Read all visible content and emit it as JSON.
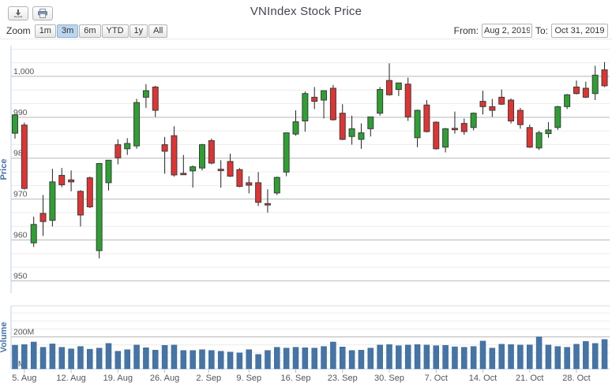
{
  "header": {
    "title": "VNIndex Stock Price"
  },
  "toolbar": {
    "export_icons": [
      "download-icon",
      "print-icon"
    ],
    "zoom_label": "Zoom",
    "zoom_buttons": [
      "1m",
      "3m",
      "6m",
      "YTD",
      "1y",
      "All"
    ],
    "zoom_active": "3m",
    "from_label": "From:",
    "from_value": "Aug 2, 2019",
    "to_label": "To:",
    "to_value": "Oct 31, 2019"
  },
  "colors": {
    "up": "#2da032",
    "down": "#e23232",
    "candle_outline": "#3c3c3c",
    "volume_bar": "#4574a7",
    "axis_title": "#4572a7",
    "grid_major": "#b8b8b8",
    "grid_minor": "#ececec",
    "axis_line": "#c0d0e0",
    "tick_label": "#555555"
  },
  "chart_data": {
    "type": "candlestick",
    "title": "VNIndex Stock Price",
    "price_axis": {
      "title": "Price",
      "ticks": [
        950,
        960,
        970,
        980,
        990,
        1000
      ],
      "tick_labels": [
        "950",
        "960",
        "970",
        "980",
        "990",
        "1,000"
      ],
      "range": [
        947,
        1007.5
      ],
      "minor_per_major": 3,
      "grid": true
    },
    "volume_axis": {
      "title": "Volume",
      "tick_labels": [
        "0M",
        "200M"
      ],
      "range_millions": [
        0,
        395
      ],
      "minor_step_millions": 50
    },
    "x_labels": [
      {
        "text": "5. Aug",
        "i": 1
      },
      {
        "text": "12. Aug",
        "i": 6
      },
      {
        "text": "19. Aug",
        "i": 11
      },
      {
        "text": "26. Aug",
        "i": 16
      },
      {
        "text": "2. Sep",
        "i": 20.7
      },
      {
        "text": "9. Sep",
        "i": 25
      },
      {
        "text": "16. Sep",
        "i": 30
      },
      {
        "text": "23. Sep",
        "i": 35
      },
      {
        "text": "30. Sep",
        "i": 40
      },
      {
        "text": "7. Oct",
        "i": 45
      },
      {
        "text": "14. Oct",
        "i": 50
      },
      {
        "text": "21. Oct",
        "i": 55
      },
      {
        "text": "28. Oct",
        "i": 60
      }
    ],
    "candles": [
      {
        "d": "Aug 2",
        "o": 986.1,
        "h": 990.8,
        "l": 984.8,
        "c": 990.6,
        "v": 148
      },
      {
        "d": "Aug 5",
        "o": 988.1,
        "h": 988.7,
        "l": 972.3,
        "c": 972.6,
        "v": 152
      },
      {
        "d": "Aug 6",
        "o": 959.3,
        "h": 965.7,
        "l": 958.3,
        "c": 963.8,
        "v": 168
      },
      {
        "d": "Aug 7",
        "o": 966.5,
        "h": 971.0,
        "l": 961.0,
        "c": 964.5,
        "v": 135
      },
      {
        "d": "Aug 8",
        "o": 964.8,
        "h": 977.4,
        "l": 963.3,
        "c": 974.2,
        "v": 156
      },
      {
        "d": "Aug 9",
        "o": 975.8,
        "h": 977.6,
        "l": 972.9,
        "c": 973.5,
        "v": 135
      },
      {
        "d": "Aug 12",
        "o": 974.7,
        "h": 977.0,
        "l": 971.9,
        "c": 974.2,
        "v": 125
      },
      {
        "d": "Aug 13",
        "o": 971.9,
        "h": 972.2,
        "l": 963.3,
        "c": 966.1,
        "v": 140
      },
      {
        "d": "Aug 14",
        "o": 975.2,
        "h": 975.5,
        "l": 967.8,
        "c": 968.1,
        "v": 123
      },
      {
        "d": "Aug 15",
        "o": 957.4,
        "h": 978.7,
        "l": 955.5,
        "c": 978.7,
        "v": 130
      },
      {
        "d": "Aug 16",
        "o": 974.0,
        "h": 979.5,
        "l": 972.1,
        "c": 979.5,
        "v": 159
      },
      {
        "d": "Aug 19",
        "o": 983.3,
        "h": 984.6,
        "l": 978.5,
        "c": 980.1,
        "v": 110
      },
      {
        "d": "Aug 20",
        "o": 982.3,
        "h": 984.9,
        "l": 980.8,
        "c": 983.6,
        "v": 120
      },
      {
        "d": "Aug 21",
        "o": 983.0,
        "h": 994.5,
        "l": 982.3,
        "c": 993.6,
        "v": 149
      },
      {
        "d": "Aug 22",
        "o": 994.9,
        "h": 998.1,
        "l": 992.3,
        "c": 996.5,
        "v": 132
      },
      {
        "d": "Aug 23",
        "o": 997.4,
        "h": 997.7,
        "l": 990.1,
        "c": 991.7,
        "v": 117
      },
      {
        "d": "Aug 26",
        "o": 983.3,
        "h": 985.2,
        "l": 976.2,
        "c": 981.7,
        "v": 147
      },
      {
        "d": "Aug 27",
        "o": 985.5,
        "h": 987.8,
        "l": 975.5,
        "c": 975.9,
        "v": 149
      },
      {
        "d": "Aug 28",
        "o": 976.3,
        "h": 980.8,
        "l": 975.9,
        "c": 976.1,
        "v": 115
      },
      {
        "d": "Aug 29",
        "o": 976.9,
        "h": 978.2,
        "l": 972.8,
        "c": 977.9,
        "v": 115
      },
      {
        "d": "Aug 30",
        "o": 977.6,
        "h": 983.5,
        "l": 977.0,
        "c": 983.3,
        "v": 120
      },
      {
        "d": "Sep 3",
        "o": 984.3,
        "h": 984.8,
        "l": 978.5,
        "c": 978.8,
        "v": 115
      },
      {
        "d": "Sep 4",
        "o": 977.3,
        "h": 979.5,
        "l": 972.8,
        "c": 977.0,
        "v": 110
      },
      {
        "d": "Sep 5",
        "o": 979.2,
        "h": 981.1,
        "l": 975.4,
        "c": 975.6,
        "v": 105
      },
      {
        "d": "Sep 6",
        "o": 977.2,
        "h": 977.6,
        "l": 972.9,
        "c": 973.1,
        "v": 100
      },
      {
        "d": "Sep 9",
        "o": 974.0,
        "h": 975.6,
        "l": 971.4,
        "c": 973.4,
        "v": 120
      },
      {
        "d": "Sep 10",
        "o": 974.0,
        "h": 976.6,
        "l": 968.3,
        "c": 969.2,
        "v": 90
      },
      {
        "d": "Sep 11",
        "o": 968.9,
        "h": 972.4,
        "l": 966.7,
        "c": 968.7,
        "v": 115
      },
      {
        "d": "Sep 12",
        "o": 971.5,
        "h": 975.5,
        "l": 971.0,
        "c": 975.3,
        "v": 135
      },
      {
        "d": "Sep 13",
        "o": 976.6,
        "h": 986.2,
        "l": 975.6,
        "c": 986.2,
        "v": 130
      },
      {
        "d": "Sep 16",
        "o": 985.9,
        "h": 991.7,
        "l": 985.5,
        "c": 988.9,
        "v": 135
      },
      {
        "d": "Sep 17",
        "o": 989.1,
        "h": 996.3,
        "l": 986.5,
        "c": 995.8,
        "v": 132
      },
      {
        "d": "Sep 18",
        "o": 994.9,
        "h": 997.4,
        "l": 992.0,
        "c": 993.9,
        "v": 130
      },
      {
        "d": "Sep 19",
        "o": 994.2,
        "h": 996.6,
        "l": 989.7,
        "c": 996.5,
        "v": 140
      },
      {
        "d": "Sep 20",
        "o": 997.1,
        "h": 997.9,
        "l": 989.2,
        "c": 989.4,
        "v": 168
      },
      {
        "d": "Sep 23",
        "o": 991.0,
        "h": 993.2,
        "l": 984.4,
        "c": 984.6,
        "v": 137
      },
      {
        "d": "Sep 24",
        "o": 985.3,
        "h": 990.4,
        "l": 983.3,
        "c": 987.2,
        "v": 115
      },
      {
        "d": "Sep 25",
        "o": 984.6,
        "h": 988.5,
        "l": 982.3,
        "c": 986.2,
        "v": 117
      },
      {
        "d": "Sep 26",
        "o": 987.2,
        "h": 990.1,
        "l": 985.3,
        "c": 990.1,
        "v": 130
      },
      {
        "d": "Sep 27",
        "o": 991.0,
        "h": 997.4,
        "l": 990.4,
        "c": 996.8,
        "v": 149
      },
      {
        "d": "Sep 30",
        "o": 999.0,
        "h": 1003.2,
        "l": 995.3,
        "c": 995.5,
        "v": 152
      },
      {
        "d": "Oct 1",
        "o": 996.8,
        "h": 998.4,
        "l": 995.2,
        "c": 998.4,
        "v": 145
      },
      {
        "d": "Oct 2",
        "o": 998.1,
        "h": 999.7,
        "l": 989.1,
        "c": 990.1,
        "v": 149
      },
      {
        "d": "Oct 3",
        "o": 985.0,
        "h": 991.9,
        "l": 982.7,
        "c": 991.7,
        "v": 152
      },
      {
        "d": "Oct 4",
        "o": 993.0,
        "h": 994.2,
        "l": 986.3,
        "c": 986.5,
        "v": 149
      },
      {
        "d": "Oct 7",
        "o": 988.8,
        "h": 989.0,
        "l": 982.1,
        "c": 982.3,
        "v": 145
      },
      {
        "d": "Oct 8",
        "o": 982.7,
        "h": 987.4,
        "l": 981.4,
        "c": 987.2,
        "v": 147
      },
      {
        "d": "Oct 9",
        "o": 987.3,
        "h": 991.4,
        "l": 986.0,
        "c": 987.1,
        "v": 138
      },
      {
        "d": "Oct 10",
        "o": 988.5,
        "h": 989.7,
        "l": 985.7,
        "c": 986.5,
        "v": 135
      },
      {
        "d": "Oct 11",
        "o": 987.5,
        "h": 991.2,
        "l": 986.8,
        "c": 991.0,
        "v": 140
      },
      {
        "d": "Oct 14",
        "o": 993.9,
        "h": 996.5,
        "l": 990.7,
        "c": 992.6,
        "v": 174
      },
      {
        "d": "Oct 15",
        "o": 992.6,
        "h": 994.5,
        "l": 990.1,
        "c": 991.7,
        "v": 130
      },
      {
        "d": "Oct 16",
        "o": 994.9,
        "h": 996.8,
        "l": 993.0,
        "c": 993.2,
        "v": 154
      },
      {
        "d": "Oct 17",
        "o": 994.2,
        "h": 994.6,
        "l": 988.5,
        "c": 989.1,
        "v": 152
      },
      {
        "d": "Oct 18",
        "o": 991.7,
        "h": 992.3,
        "l": 987.2,
        "c": 988.2,
        "v": 149
      },
      {
        "d": "Oct 21",
        "o": 987.5,
        "h": 988.2,
        "l": 982.5,
        "c": 982.7,
        "v": 150
      },
      {
        "d": "Oct 22",
        "o": 982.5,
        "h": 986.7,
        "l": 982.0,
        "c": 986.2,
        "v": 200
      },
      {
        "d": "Oct 23",
        "o": 986.0,
        "h": 988.8,
        "l": 985.0,
        "c": 986.9,
        "v": 149
      },
      {
        "d": "Oct 24",
        "o": 987.5,
        "h": 992.8,
        "l": 986.9,
        "c": 992.6,
        "v": 140
      },
      {
        "d": "Oct 25",
        "o": 992.6,
        "h": 995.7,
        "l": 992.0,
        "c": 995.5,
        "v": 135
      },
      {
        "d": "Oct 28",
        "o": 997.4,
        "h": 999.0,
        "l": 995.6,
        "c": 995.8,
        "v": 154
      },
      {
        "d": "Oct 29",
        "o": 997.1,
        "h": 998.7,
        "l": 994.7,
        "c": 994.9,
        "v": 172
      },
      {
        "d": "Oct 30",
        "o": 995.8,
        "h": 1002.6,
        "l": 994.2,
        "c": 1000.3,
        "v": 159
      },
      {
        "d": "Oct 31",
        "o": 1001.6,
        "h": 1003.5,
        "l": 997.4,
        "c": 997.7,
        "v": 184
      }
    ]
  }
}
